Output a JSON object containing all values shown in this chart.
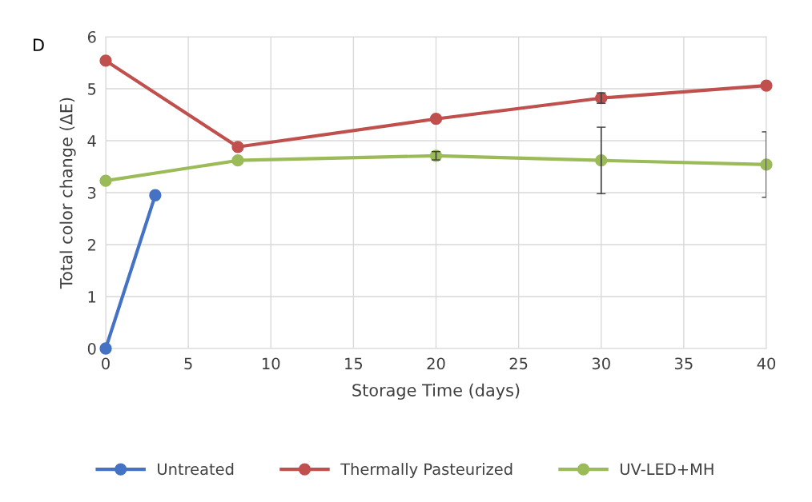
{
  "chart_data": {
    "type": "line",
    "xlabel": "Storage Time (days)",
    "ylabel": "Total color change (ΔE)",
    "annotations": [
      "D"
    ],
    "xlim": [
      0,
      40
    ],
    "xticks": [
      0,
      5,
      10,
      15,
      20,
      25,
      30,
      35,
      40
    ],
    "ylim": [
      0,
      6
    ],
    "yticks": [
      0,
      1,
      2,
      3,
      4,
      5,
      6
    ],
    "grid": true,
    "legend": "bottom",
    "marker": "circle",
    "line_style": "solid",
    "series": [
      {
        "name": "Untreated",
        "color": "#4472c4",
        "x": [
          0,
          3
        ],
        "values": [
          0,
          2.95
        ]
      },
      {
        "name": "Thermally Pasteurized",
        "color": "#c0504d",
        "x": [
          0,
          8,
          20,
          30,
          40
        ],
        "values": [
          5.54,
          3.88,
          4.42,
          4.82,
          5.06
        ],
        "errors": [
          null,
          null,
          null,
          0.1,
          null
        ]
      },
      {
        "name": "UV-LED+MH",
        "color": "#9bbb59",
        "x": [
          0,
          8,
          20,
          30,
          40
        ],
        "values": [
          3.23,
          3.62,
          3.71,
          3.62,
          3.54
        ],
        "errors": [
          null,
          null,
          0.08,
          0.64,
          0.63
        ]
      }
    ]
  }
}
